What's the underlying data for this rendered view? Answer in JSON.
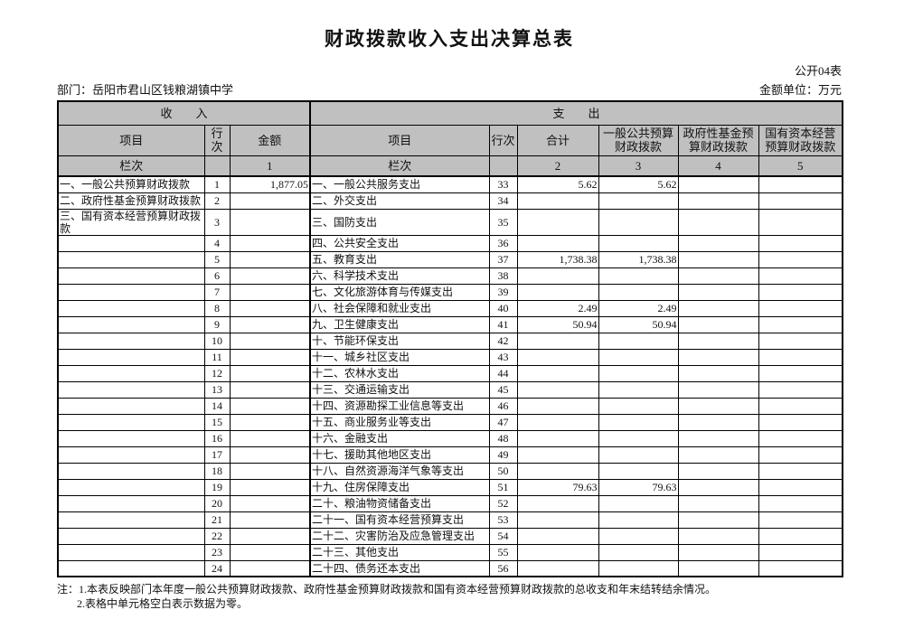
{
  "page": {
    "title": "财政拨款收入支出决算总表",
    "table_code": "公开04表",
    "department": "部门：岳阳市君山区钱粮湖镇中学",
    "unit": "金额单位：万元"
  },
  "colors": {
    "header_bg": "#c0c0c0",
    "border": "#000000",
    "page_bg": "#ffffff"
  },
  "table": {
    "sections": {
      "income": "收　　入",
      "expense": "支　　出"
    },
    "columns": {
      "income_item": "项目",
      "income_line": "行次",
      "income_amount": "金额",
      "expense_item": "项目",
      "expense_line": "行次",
      "expense_total": "合计",
      "expense_general": "一般公共预算财政拨款",
      "expense_fund": "政府性基金预算财政拨款",
      "expense_capital": "国有资本经营预算财政拨款"
    },
    "colindex": {
      "income_item": "栏次",
      "income_line": "",
      "income_amount": "1",
      "expense_item": "栏次",
      "expense_line": "",
      "expense_total": "2",
      "expense_general": "3",
      "expense_fund": "4",
      "expense_capital": "5"
    },
    "rows": [
      {
        "in_item": "一、一般公共预算财政拨款",
        "in_line": "1",
        "in_amt": "1,877.05",
        "ex_item": "一、一般公共服务支出",
        "ex_line": "33",
        "total": "5.62",
        "general": "5.62",
        "fund": "",
        "capital": ""
      },
      {
        "in_item": "二、政府性基金预算财政拨款",
        "in_line": "2",
        "in_amt": "",
        "ex_item": "二、外交支出",
        "ex_line": "34",
        "total": "",
        "general": "",
        "fund": "",
        "capital": ""
      },
      {
        "in_item": "三、国有资本经营预算财政拨款",
        "in_line": "3",
        "in_amt": "",
        "ex_item": "三、国防支出",
        "ex_line": "35",
        "total": "",
        "general": "",
        "fund": "",
        "capital": ""
      },
      {
        "in_item": "",
        "in_line": "4",
        "in_amt": "",
        "ex_item": "四、公共安全支出",
        "ex_line": "36",
        "total": "",
        "general": "",
        "fund": "",
        "capital": ""
      },
      {
        "in_item": "",
        "in_line": "5",
        "in_amt": "",
        "ex_item": "五、教育支出",
        "ex_line": "37",
        "total": "1,738.38",
        "general": "1,738.38",
        "fund": "",
        "capital": ""
      },
      {
        "in_item": "",
        "in_line": "6",
        "in_amt": "",
        "ex_item": "六、科学技术支出",
        "ex_line": "38",
        "total": "",
        "general": "",
        "fund": "",
        "capital": ""
      },
      {
        "in_item": "",
        "in_line": "7",
        "in_amt": "",
        "ex_item": "七、文化旅游体育与传媒支出",
        "ex_line": "39",
        "total": "",
        "general": "",
        "fund": "",
        "capital": ""
      },
      {
        "in_item": "",
        "in_line": "8",
        "in_amt": "",
        "ex_item": "八、社会保障和就业支出",
        "ex_line": "40",
        "total": "2.49",
        "general": "2.49",
        "fund": "",
        "capital": ""
      },
      {
        "in_item": "",
        "in_line": "9",
        "in_amt": "",
        "ex_item": "九、卫生健康支出",
        "ex_line": "41",
        "total": "50.94",
        "general": "50.94",
        "fund": "",
        "capital": ""
      },
      {
        "in_item": "",
        "in_line": "10",
        "in_amt": "",
        "ex_item": "十、节能环保支出",
        "ex_line": "42",
        "total": "",
        "general": "",
        "fund": "",
        "capital": ""
      },
      {
        "in_item": "",
        "in_line": "11",
        "in_amt": "",
        "ex_item": "十一、城乡社区支出",
        "ex_line": "43",
        "total": "",
        "general": "",
        "fund": "",
        "capital": ""
      },
      {
        "in_item": "",
        "in_line": "12",
        "in_amt": "",
        "ex_item": "十二、农林水支出",
        "ex_line": "44",
        "total": "",
        "general": "",
        "fund": "",
        "capital": ""
      },
      {
        "in_item": "",
        "in_line": "13",
        "in_amt": "",
        "ex_item": "十三、交通运输支出",
        "ex_line": "45",
        "total": "",
        "general": "",
        "fund": "",
        "capital": ""
      },
      {
        "in_item": "",
        "in_line": "14",
        "in_amt": "",
        "ex_item": "十四、资源勘探工业信息等支出",
        "ex_line": "46",
        "total": "",
        "general": "",
        "fund": "",
        "capital": ""
      },
      {
        "in_item": "",
        "in_line": "15",
        "in_amt": "",
        "ex_item": "十五、商业服务业等支出",
        "ex_line": "47",
        "total": "",
        "general": "",
        "fund": "",
        "capital": ""
      },
      {
        "in_item": "",
        "in_line": "16",
        "in_amt": "",
        "ex_item": "十六、金融支出",
        "ex_line": "48",
        "total": "",
        "general": "",
        "fund": "",
        "capital": ""
      },
      {
        "in_item": "",
        "in_line": "17",
        "in_amt": "",
        "ex_item": "十七、援助其他地区支出",
        "ex_line": "49",
        "total": "",
        "general": "",
        "fund": "",
        "capital": ""
      },
      {
        "in_item": "",
        "in_line": "18",
        "in_amt": "",
        "ex_item": "十八、自然资源海洋气象等支出",
        "ex_line": "50",
        "total": "",
        "general": "",
        "fund": "",
        "capital": ""
      },
      {
        "in_item": "",
        "in_line": "19",
        "in_amt": "",
        "ex_item": "十九、住房保障支出",
        "ex_line": "51",
        "total": "79.63",
        "general": "79.63",
        "fund": "",
        "capital": ""
      },
      {
        "in_item": "",
        "in_line": "20",
        "in_amt": "",
        "ex_item": "二十、粮油物资储备支出",
        "ex_line": "52",
        "total": "",
        "general": "",
        "fund": "",
        "capital": ""
      },
      {
        "in_item": "",
        "in_line": "21",
        "in_amt": "",
        "ex_item": "二十一、国有资本经营预算支出",
        "ex_line": "53",
        "total": "",
        "general": "",
        "fund": "",
        "capital": ""
      },
      {
        "in_item": "",
        "in_line": "22",
        "in_amt": "",
        "ex_item": "二十二、灾害防治及应急管理支出",
        "ex_line": "54",
        "total": "",
        "general": "",
        "fund": "",
        "capital": ""
      },
      {
        "in_item": "",
        "in_line": "23",
        "in_amt": "",
        "ex_item": "二十三、其他支出",
        "ex_line": "55",
        "total": "",
        "general": "",
        "fund": "",
        "capital": ""
      },
      {
        "in_item": "",
        "in_line": "24",
        "in_amt": "",
        "ex_item": "二十四、债务还本支出",
        "ex_line": "56",
        "total": "",
        "general": "",
        "fund": "",
        "capital": ""
      }
    ]
  },
  "notes": [
    "注：1.本表反映部门本年度一般公共预算财政拨款、政府性基金预算财政拨款和国有资本经营预算财政拨款的总收支和年末结转结余情况。",
    "2.表格中单元格空白表示数据为零。"
  ]
}
